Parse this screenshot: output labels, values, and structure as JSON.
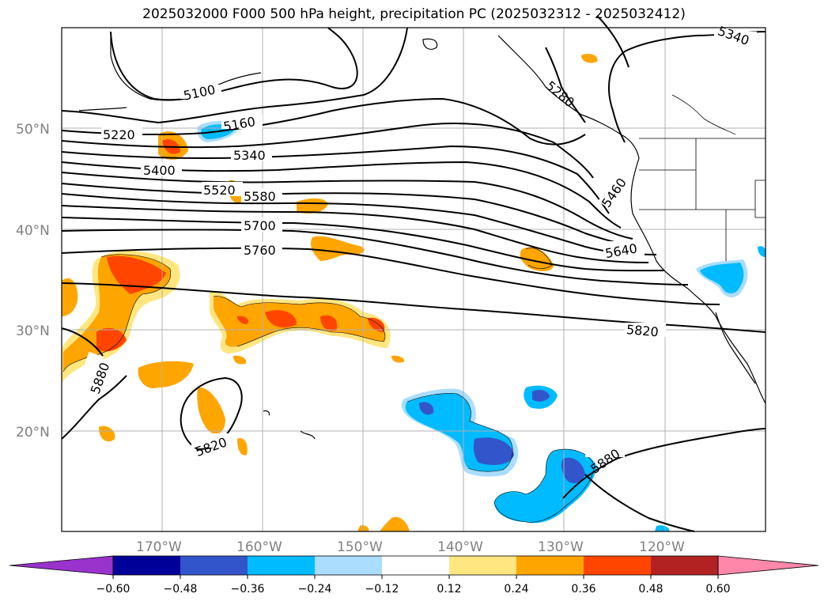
{
  "title": "2025032000 F000 500 hPa height, precipitation PC (2025032312 - 2025032412)",
  "lat_labels": [
    "50°N",
    "40°N",
    "30°N",
    "20°N"
  ],
  "lon_labels": [
    "170°W",
    "160°W",
    "150°W",
    "140°W",
    "130°W",
    "120°W"
  ],
  "contour_labels": [
    "5100",
    "5160",
    "5220",
    "5340",
    "5400",
    "5520",
    "5580",
    "5700",
    "5760",
    "5280",
    "5460",
    "5640",
    "5820",
    "5880",
    "5820",
    "5880",
    "5340"
  ],
  "colorbar": {
    "ticks": [
      "−0.60",
      "−0.48",
      "−0.36",
      "−0.24",
      "−0.12",
      "0.12",
      "0.24",
      "0.36",
      "0.48",
      "0.60"
    ],
    "colors": [
      "#9933cc",
      "#000099",
      "#3355cc",
      "#00bbff",
      "#aaddff",
      "#ffffff",
      "#ffe680",
      "#ffa500",
      "#ff4500",
      "#b22222",
      "#ff88aa"
    ]
  }
}
